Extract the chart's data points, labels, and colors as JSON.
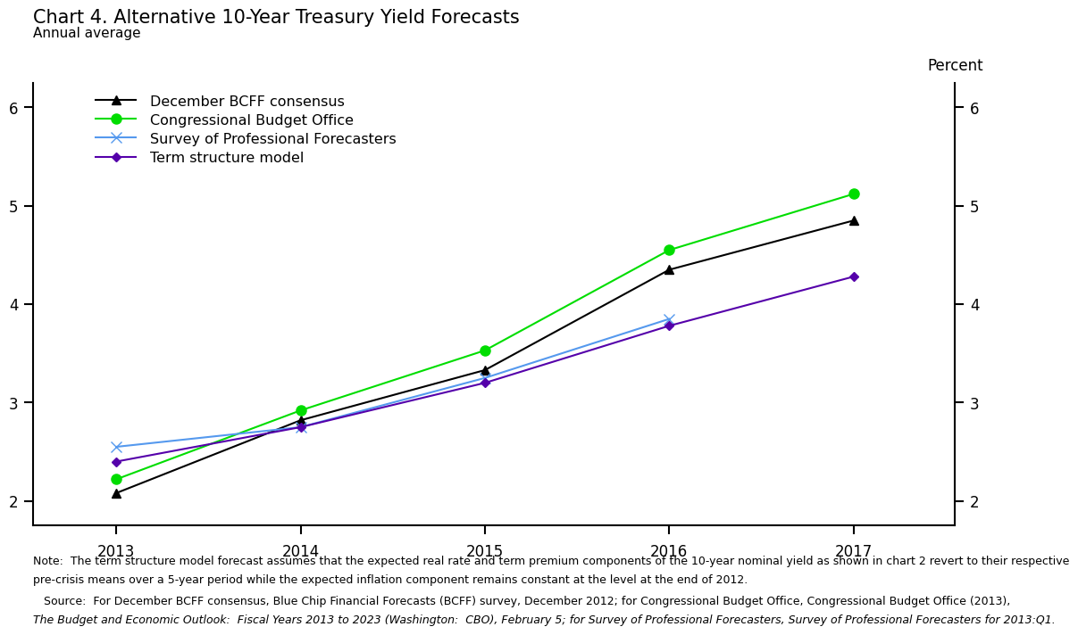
{
  "title": "Chart 4. Alternative 10-Year Treasury Yield Forecasts",
  "subtitle": "Annual average",
  "ylabel_right": "Percent",
  "xlim": [
    2012.55,
    2017.55
  ],
  "ylim": [
    1.75,
    6.25
  ],
  "yticks": [
    2,
    3,
    4,
    5,
    6
  ],
  "xticks": [
    2013,
    2014,
    2015,
    2016,
    2017
  ],
  "series": [
    {
      "label": "December BCFF consensus",
      "color": "#000000",
      "marker": "^",
      "markersize": 7,
      "linewidth": 1.5,
      "x": [
        2013,
        2014,
        2015,
        2016,
        2017
      ],
      "y": [
        2.08,
        2.82,
        3.33,
        4.35,
        4.85
      ]
    },
    {
      "label": "Congressional Budget Office",
      "color": "#00DD00",
      "marker": "o",
      "markersize": 8,
      "linewidth": 1.5,
      "x": [
        2013,
        2014,
        2015,
        2016,
        2017
      ],
      "y": [
        2.22,
        2.92,
        3.53,
        4.55,
        5.12
      ]
    },
    {
      "label": "Survey of Professional Forecasters",
      "color": "#5599EE",
      "marker": "x",
      "markersize": 9,
      "linewidth": 1.5,
      "x": [
        2013,
        2014,
        2015,
        2016
      ],
      "y": [
        2.55,
        2.75,
        3.25,
        3.85
      ]
    },
    {
      "label": "Term structure model",
      "color": "#5500AA",
      "marker": "D",
      "markersize": 5,
      "linewidth": 1.5,
      "x": [
        2013,
        2014,
        2015,
        2016,
        2017
      ],
      "y": [
        2.4,
        2.75,
        3.2,
        3.78,
        4.28
      ]
    }
  ],
  "note_line1": "Note:  The term structure model forecast assumes that the expected real rate and term premium components of the 10-year nominal yield as shown in chart 2 revert to their respective",
  "note_line2": "pre-crisis means over a 5-year period while the expected inflation component remains constant at the level at the end of 2012.",
  "source_line1": "   Source:  For December BCFF consensus, Blue Chip Financial Forecasts (BCFF) survey, December 2012; for Congressional Budget Office, Congressional Budget Office (2013),",
  "source_line2": "The Budget and Economic Outlook:  Fiscal Years 2013 to 2023 (Washington:  CBO), February 5; for Survey of Professional Forecasters, Survey of Professional Forecasters for 2013:Q1.",
  "background_color": "#FFFFFF",
  "title_fontsize": 15,
  "subtitle_fontsize": 11,
  "tick_fontsize": 12,
  "legend_fontsize": 11.5,
  "note_fontsize": 9.0
}
